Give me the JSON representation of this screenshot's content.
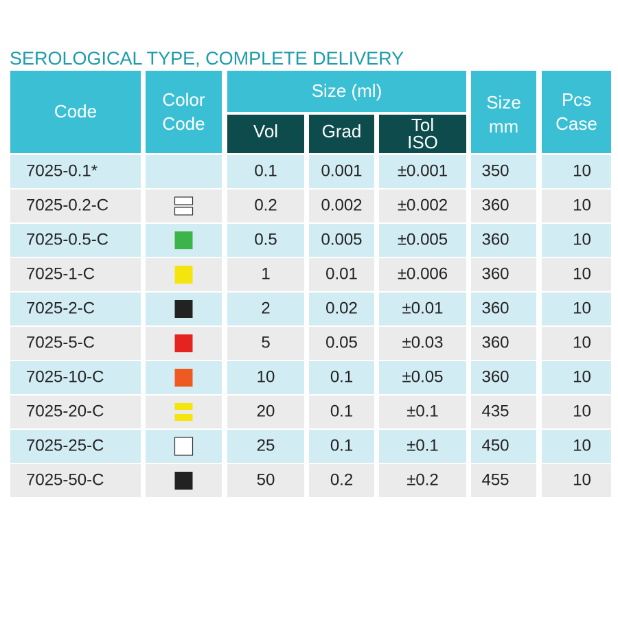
{
  "title": "SEROLOGICAL TYPE, COMPLETE DELIVERY",
  "header": {
    "code": "Code",
    "color_code": [
      "Color",
      "Code"
    ],
    "size_ml": "Size (ml)",
    "vol": "Vol",
    "grad": "Grad",
    "tol": [
      "Tol",
      "ISO"
    ],
    "size_mm": [
      "Size",
      "mm"
    ],
    "pcs": [
      "Pcs",
      "Case"
    ]
  },
  "table": {
    "rows": [
      [
        "7025-0.1*",
        "0.1",
        "0.001",
        "±0.001",
        "350",
        "10"
      ],
      [
        "7025-0.2-C",
        "0.2",
        "0.002",
        "±0.002",
        "360",
        "10"
      ],
      [
        "7025-0.5-C",
        "0.5",
        "0.005",
        "±0.005",
        "360",
        "10"
      ],
      [
        "7025-1-C",
        "1",
        "0.01",
        "±0.006",
        "360",
        "10"
      ],
      [
        "7025-2-C",
        "2",
        "0.02",
        "±0.01",
        "360",
        "10"
      ],
      [
        "7025-5-C",
        "5",
        "0.05",
        "±0.03",
        "360",
        "10"
      ],
      [
        "7025-10-C",
        "10",
        "0.1",
        "±0.05",
        "360",
        "10"
      ],
      [
        "7025-20-C",
        "20",
        "0.1",
        "±0.1",
        "435",
        "10"
      ],
      [
        "7025-25-C",
        "25",
        "0.1",
        "±0.1",
        "450",
        "10"
      ],
      [
        "7025-50-C",
        "50",
        "0.2",
        "±0.2",
        "455",
        "10"
      ]
    ]
  }
}
